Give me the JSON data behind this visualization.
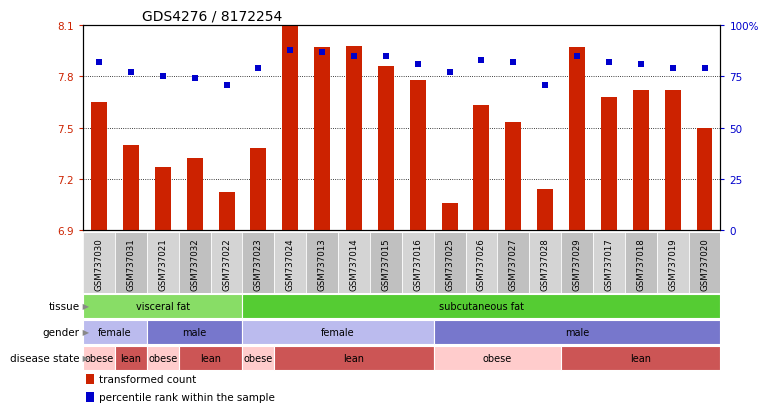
{
  "title": "GDS4276 / 8172254",
  "samples": [
    "GSM737030",
    "GSM737031",
    "GSM737021",
    "GSM737032",
    "GSM737022",
    "GSM737023",
    "GSM737024",
    "GSM737013",
    "GSM737014",
    "GSM737015",
    "GSM737016",
    "GSM737025",
    "GSM737026",
    "GSM737027",
    "GSM737028",
    "GSM737029",
    "GSM737017",
    "GSM737018",
    "GSM737019",
    "GSM737020"
  ],
  "bar_values": [
    7.65,
    7.4,
    7.27,
    7.32,
    7.12,
    7.38,
    8.1,
    7.97,
    7.98,
    7.86,
    7.78,
    7.06,
    7.63,
    7.53,
    7.14,
    7.97,
    7.68,
    7.72,
    7.72,
    7.5
  ],
  "dot_values": [
    82,
    77,
    75,
    74,
    71,
    79,
    88,
    87,
    85,
    85,
    81,
    77,
    83,
    82,
    71,
    85,
    82,
    81,
    79,
    79
  ],
  "ylim_left": [
    6.9,
    8.1
  ],
  "ylim_right": [
    0,
    100
  ],
  "yticks_left": [
    6.9,
    7.2,
    7.5,
    7.8,
    8.1
  ],
  "yticks_right": [
    0,
    25,
    50,
    75,
    100
  ],
  "ytick_labels_right": [
    "0",
    "25",
    "50",
    "75",
    "100%"
  ],
  "bar_color": "#cc2200",
  "dot_color": "#0000cc",
  "plot_bg_color": "#ffffff",
  "tissue_segments": [
    {
      "start": 0,
      "end": 5,
      "label": "visceral fat",
      "color": "#88dd66"
    },
    {
      "start": 5,
      "end": 20,
      "label": "subcutaneous fat",
      "color": "#55cc33"
    }
  ],
  "gender_segments": [
    {
      "start": 0,
      "end": 2,
      "label": "female",
      "color": "#bbbbee"
    },
    {
      "start": 2,
      "end": 5,
      "label": "male",
      "color": "#7777cc"
    },
    {
      "start": 5,
      "end": 11,
      "label": "female",
      "color": "#bbbbee"
    },
    {
      "start": 11,
      "end": 20,
      "label": "male",
      "color": "#7777cc"
    }
  ],
  "disease_segments": [
    {
      "start": 0,
      "end": 1,
      "label": "obese",
      "color": "#ffcccc"
    },
    {
      "start": 1,
      "end": 2,
      "label": "lean",
      "color": "#cc5555"
    },
    {
      "start": 2,
      "end": 3,
      "label": "obese",
      "color": "#ffcccc"
    },
    {
      "start": 3,
      "end": 5,
      "label": "lean",
      "color": "#cc5555"
    },
    {
      "start": 5,
      "end": 6,
      "label": "obese",
      "color": "#ffcccc"
    },
    {
      "start": 6,
      "end": 11,
      "label": "lean",
      "color": "#cc5555"
    },
    {
      "start": 11,
      "end": 15,
      "label": "obese",
      "color": "#ffcccc"
    },
    {
      "start": 15,
      "end": 20,
      "label": "lean",
      "color": "#cc5555"
    }
  ],
  "legend_items": [
    {
      "label": "transformed count",
      "color": "#cc2200"
    },
    {
      "label": "percentile rank within the sample",
      "color": "#0000cc"
    }
  ],
  "row_labels": [
    "tissue",
    "gender",
    "disease state"
  ],
  "gridline_y": [
    7.2,
    7.5,
    7.8
  ]
}
